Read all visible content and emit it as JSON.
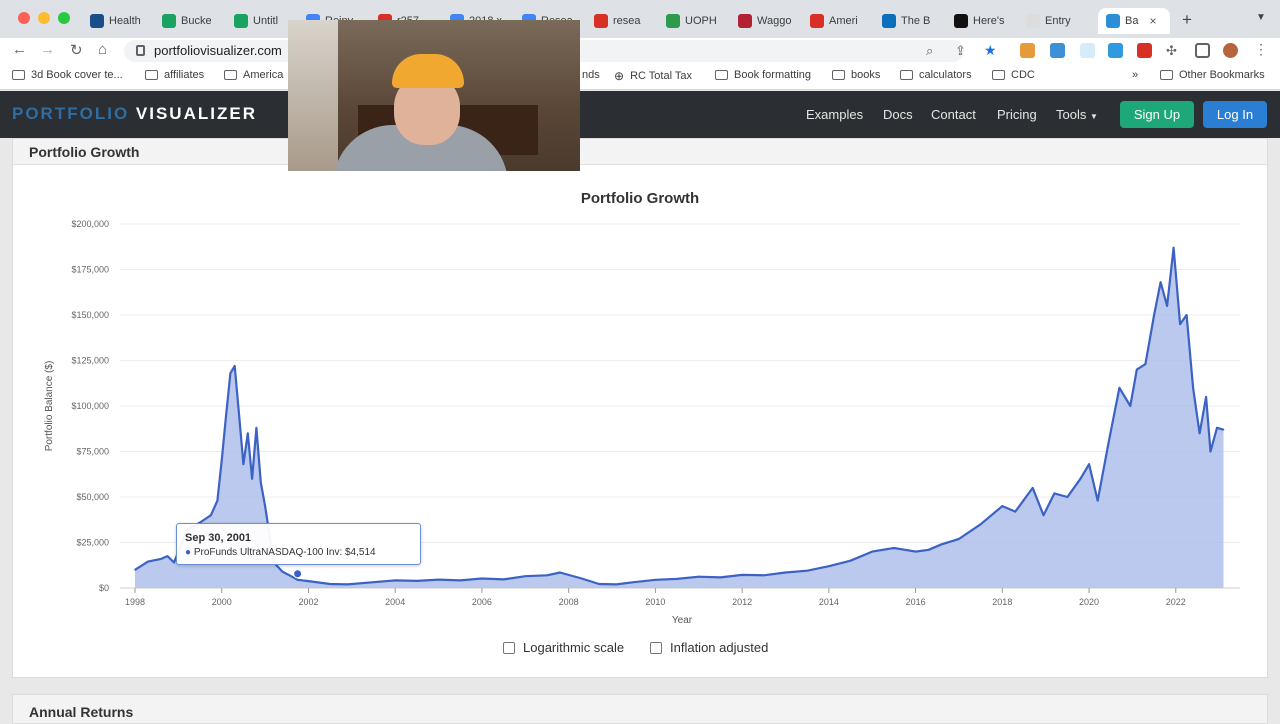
{
  "browser": {
    "tabs": [
      "Health",
      "Bucke",
      "Untitl",
      "Reinv",
      "r257",
      "2018 x",
      "Resea",
      "resea",
      "UOPH",
      "Waggo",
      "Ameri",
      "The B",
      "Here's",
      "Entry",
      "Ba"
    ],
    "url": "portfoliovisualizer.com",
    "bookmarks": [
      "3d Book cover te...",
      "affiliates",
      "America",
      "nds",
      "RC Total Tax",
      "Book formatting",
      "books",
      "calculators",
      "CDC",
      "»",
      "Other Bookmarks"
    ]
  },
  "site": {
    "brand_part1": "PORTFOLIO",
    "brand_part2": "VISUALIZER",
    "nav": [
      "Examples",
      "Docs",
      "Contact",
      "Pricing",
      "Tools"
    ],
    "signup": "Sign Up",
    "login": "Log In"
  },
  "section_title": "Portfolio Growth",
  "next_section_title": "Annual Returns",
  "tooltip": {
    "date": "Sep 30, 2001",
    "series_label": "ProFunds UltraNASDAQ-100 Inv: $4,514"
  },
  "options": {
    "log_scale": "Logarithmic scale",
    "inflation": "Inflation adjusted"
  },
  "colors": {
    "line": "#3b62c4",
    "fill": "#aec0ea",
    "signup": "#1ea87a",
    "login": "#2a7fd4",
    "brand_accent": "#2e6da4"
  },
  "chart_data": {
    "type": "area",
    "title": "Portfolio Growth",
    "xlabel": "Year",
    "ylabel": "Portfolio Balance ($)",
    "x_ticks": [
      "1998",
      "2000",
      "2002",
      "2004",
      "2006",
      "2008",
      "2010",
      "2012",
      "2014",
      "2016",
      "2018",
      "2020",
      "2022"
    ],
    "y_ticks": [
      "$0",
      "$25,000",
      "$50,000",
      "$75,000",
      "$100,000",
      "$125,000",
      "$150,000",
      "$175,000",
      "$200,000"
    ],
    "xlim": [
      1998,
      2023.25
    ],
    "ylim": [
      0,
      200000
    ],
    "grid": true,
    "series": [
      {
        "name": "ProFunds UltraNASDAQ-100 Inv",
        "x": [
          1998.0,
          1998.3,
          1998.6,
          1998.75,
          1998.9,
          1999.2,
          1999.5,
          1999.75,
          1999.9,
          2000.0,
          2000.1,
          2000.2,
          2000.3,
          2000.4,
          2000.5,
          2000.6,
          2000.7,
          2000.8,
          2000.9,
          2001.0,
          2001.2,
          2001.4,
          2001.6,
          2001.75,
          2002.0,
          2002.5,
          2002.9,
          2003.5,
          2004.0,
          2004.5,
          2005.0,
          2005.5,
          2006.0,
          2006.5,
          2007.0,
          2007.5,
          2007.8,
          2008.3,
          2008.7,
          2009.1,
          2009.5,
          2010.0,
          2010.5,
          2011.0,
          2011.5,
          2012.0,
          2012.5,
          2013.0,
          2013.5,
          2014.0,
          2014.5,
          2015.0,
          2015.5,
          2016.0,
          2016.3,
          2016.6,
          2017.0,
          2017.5,
          2018.0,
          2018.3,
          2018.7,
          2018.95,
          2019.2,
          2019.5,
          2019.8,
          2020.0,
          2020.2,
          2020.45,
          2020.7,
          2020.95,
          2021.1,
          2021.3,
          2021.5,
          2021.65,
          2021.8,
          2021.95,
          2022.1,
          2022.25,
          2022.4,
          2022.55,
          2022.7,
          2022.8,
          2022.95,
          2023.1
        ],
        "values": [
          10000,
          14500,
          16000,
          17500,
          14000,
          32000,
          36000,
          40000,
          48000,
          70000,
          95000,
          118000,
          122000,
          95000,
          68000,
          85000,
          60000,
          88000,
          58000,
          45000,
          14000,
          9000,
          6500,
          4514,
          3800,
          2200,
          2000,
          3200,
          4200,
          3900,
          4600,
          4200,
          5200,
          4700,
          6500,
          7000,
          8500,
          5200,
          2200,
          2000,
          3200,
          4500,
          5000,
          6200,
          5800,
          7200,
          7000,
          8500,
          9500,
          12000,
          15000,
          20000,
          22000,
          20000,
          21000,
          24000,
          27000,
          35000,
          45000,
          42000,
          55000,
          40000,
          52000,
          50000,
          60000,
          68000,
          48000,
          80000,
          110000,
          100000,
          120000,
          123000,
          150000,
          168000,
          155000,
          187000,
          145000,
          150000,
          110000,
          85000,
          105000,
          75000,
          88000,
          87000
        ]
      }
    ]
  }
}
